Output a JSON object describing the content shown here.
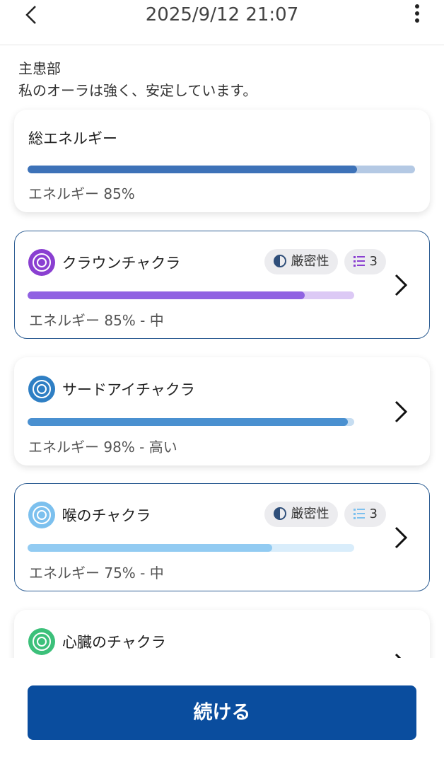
{
  "header": {
    "datetime": "2025/9/12 21:07"
  },
  "intro": {
    "title": "主患部",
    "text": "私のオーラは強く、安定しています。"
  },
  "total": {
    "title": "総エネルギー",
    "energy": 85,
    "energy_label": "エネルギー 85%",
    "color": "#3d72b8",
    "track": "#b4c9e4"
  },
  "chakras": [
    {
      "name": "クラウンチャクラ",
      "energy": 85,
      "energy_label": "エネルギー 85% - 中",
      "color": "#9062e2",
      "track": "#dcc9f5",
      "icon_color": "#8a3fd1",
      "badges": {
        "strictness": "厳密性",
        "count": 3
      },
      "selected": true
    },
    {
      "name": "サードアイチャクラ",
      "energy": 98,
      "energy_label": "エネルギー 98% - 高い",
      "color": "#4a90d0",
      "track": "#c6ddf1",
      "icon_color": "#2f7fc4",
      "selected": false
    },
    {
      "name": "喉のチャクラ",
      "energy": 75,
      "energy_label": "エネルギー 75% - 中",
      "color": "#92cbf2",
      "track": "#d9edfb",
      "icon_color": "#7cc0ee",
      "badges": {
        "strictness": "厳密性",
        "count": 3
      },
      "selected": true
    },
    {
      "name": "心臓のチャクラ",
      "icon_color": "#3cc07a",
      "selected": false
    }
  ],
  "button": "続ける"
}
